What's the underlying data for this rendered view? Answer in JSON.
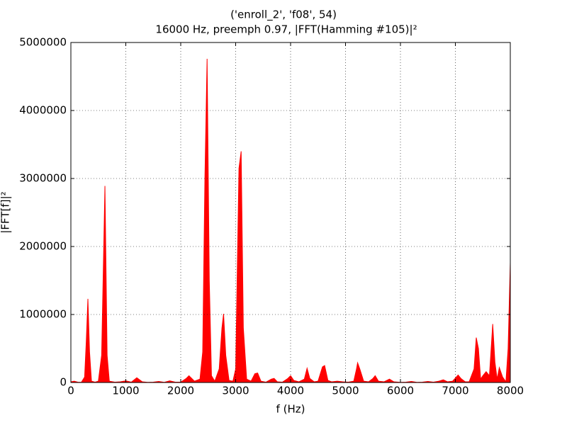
{
  "chart_data": {
    "type": "area",
    "title": "('enroll_2', 'f08', 54)",
    "subtitle": "16000 Hz, preemph 0.97, |FFT(Hamming #105)|²",
    "x_label": "f (Hz)",
    "y_label": "|FFT[f]|²",
    "color": "#ff0000",
    "grid": true,
    "xlim": [
      0,
      8000
    ],
    "xticks": [
      0,
      1000,
      2000,
      3000,
      4000,
      5000,
      6000,
      7000,
      8000
    ],
    "ylim": [
      0,
      5000000
    ],
    "yticks": [
      0,
      1000000,
      2000000,
      3000000,
      4000000,
      5000000
    ],
    "x": [
      0,
      60,
      125,
      190,
      250,
      280,
      310,
      340,
      375,
      440,
      500,
      560,
      620,
      660,
      700,
      800,
      900,
      1000,
      1100,
      1200,
      1300,
      1400,
      1500,
      1600,
      1700,
      1800,
      1900,
      2000,
      2100,
      2150,
      2250,
      2350,
      2400,
      2440,
      2480,
      2520,
      2560,
      2620,
      2700,
      2750,
      2780,
      2820,
      2880,
      2950,
      3000,
      3060,
      3100,
      3140,
      3200,
      3280,
      3350,
      3400,
      3460,
      3550,
      3650,
      3700,
      3760,
      3850,
      3950,
      4000,
      4060,
      4150,
      4250,
      4300,
      4350,
      4430,
      4500,
      4580,
      4620,
      4680,
      4750,
      4850,
      4950,
      5050,
      5150,
      5200,
      5220,
      5260,
      5330,
      5420,
      5500,
      5540,
      5600,
      5700,
      5800,
      5880,
      6000,
      6100,
      6200,
      6300,
      6400,
      6500,
      6600,
      6700,
      6780,
      6860,
      6950,
      7050,
      7100,
      7180,
      7250,
      7340,
      7380,
      7420,
      7460,
      7500,
      7560,
      7620,
      7680,
      7720,
      7760,
      7800,
      7860,
      7920,
      7960,
      8000
    ],
    "values": [
      10000,
      20000,
      5000,
      2000,
      80000,
      600000,
      1230000,
      450000,
      20000,
      5000,
      20000,
      400000,
      2890000,
      400000,
      20000,
      5000,
      10000,
      25000,
      5000,
      70000,
      10000,
      3000,
      5000,
      15000,
      3000,
      25000,
      5000,
      5000,
      60000,
      100000,
      20000,
      50000,
      450000,
      3000000,
      4760000,
      1500000,
      100000,
      20000,
      200000,
      800000,
      1010000,
      400000,
      30000,
      20000,
      200000,
      3150000,
      3400000,
      800000,
      50000,
      20000,
      130000,
      140000,
      20000,
      5000,
      50000,
      60000,
      10000,
      5000,
      60000,
      100000,
      30000,
      10000,
      50000,
      210000,
      60000,
      10000,
      20000,
      230000,
      250000,
      30000,
      10000,
      20000,
      10000,
      5000,
      20000,
      200000,
      290000,
      200000,
      20000,
      10000,
      60000,
      100000,
      20000,
      10000,
      50000,
      10000,
      3000,
      5000,
      15000,
      3000,
      5000,
      15000,
      5000,
      20000,
      40000,
      10000,
      20000,
      110000,
      60000,
      10000,
      10000,
      200000,
      660000,
      500000,
      50000,
      100000,
      160000,
      100000,
      860000,
      300000,
      50000,
      220000,
      80000,
      10000,
      500000,
      1760000
    ]
  }
}
